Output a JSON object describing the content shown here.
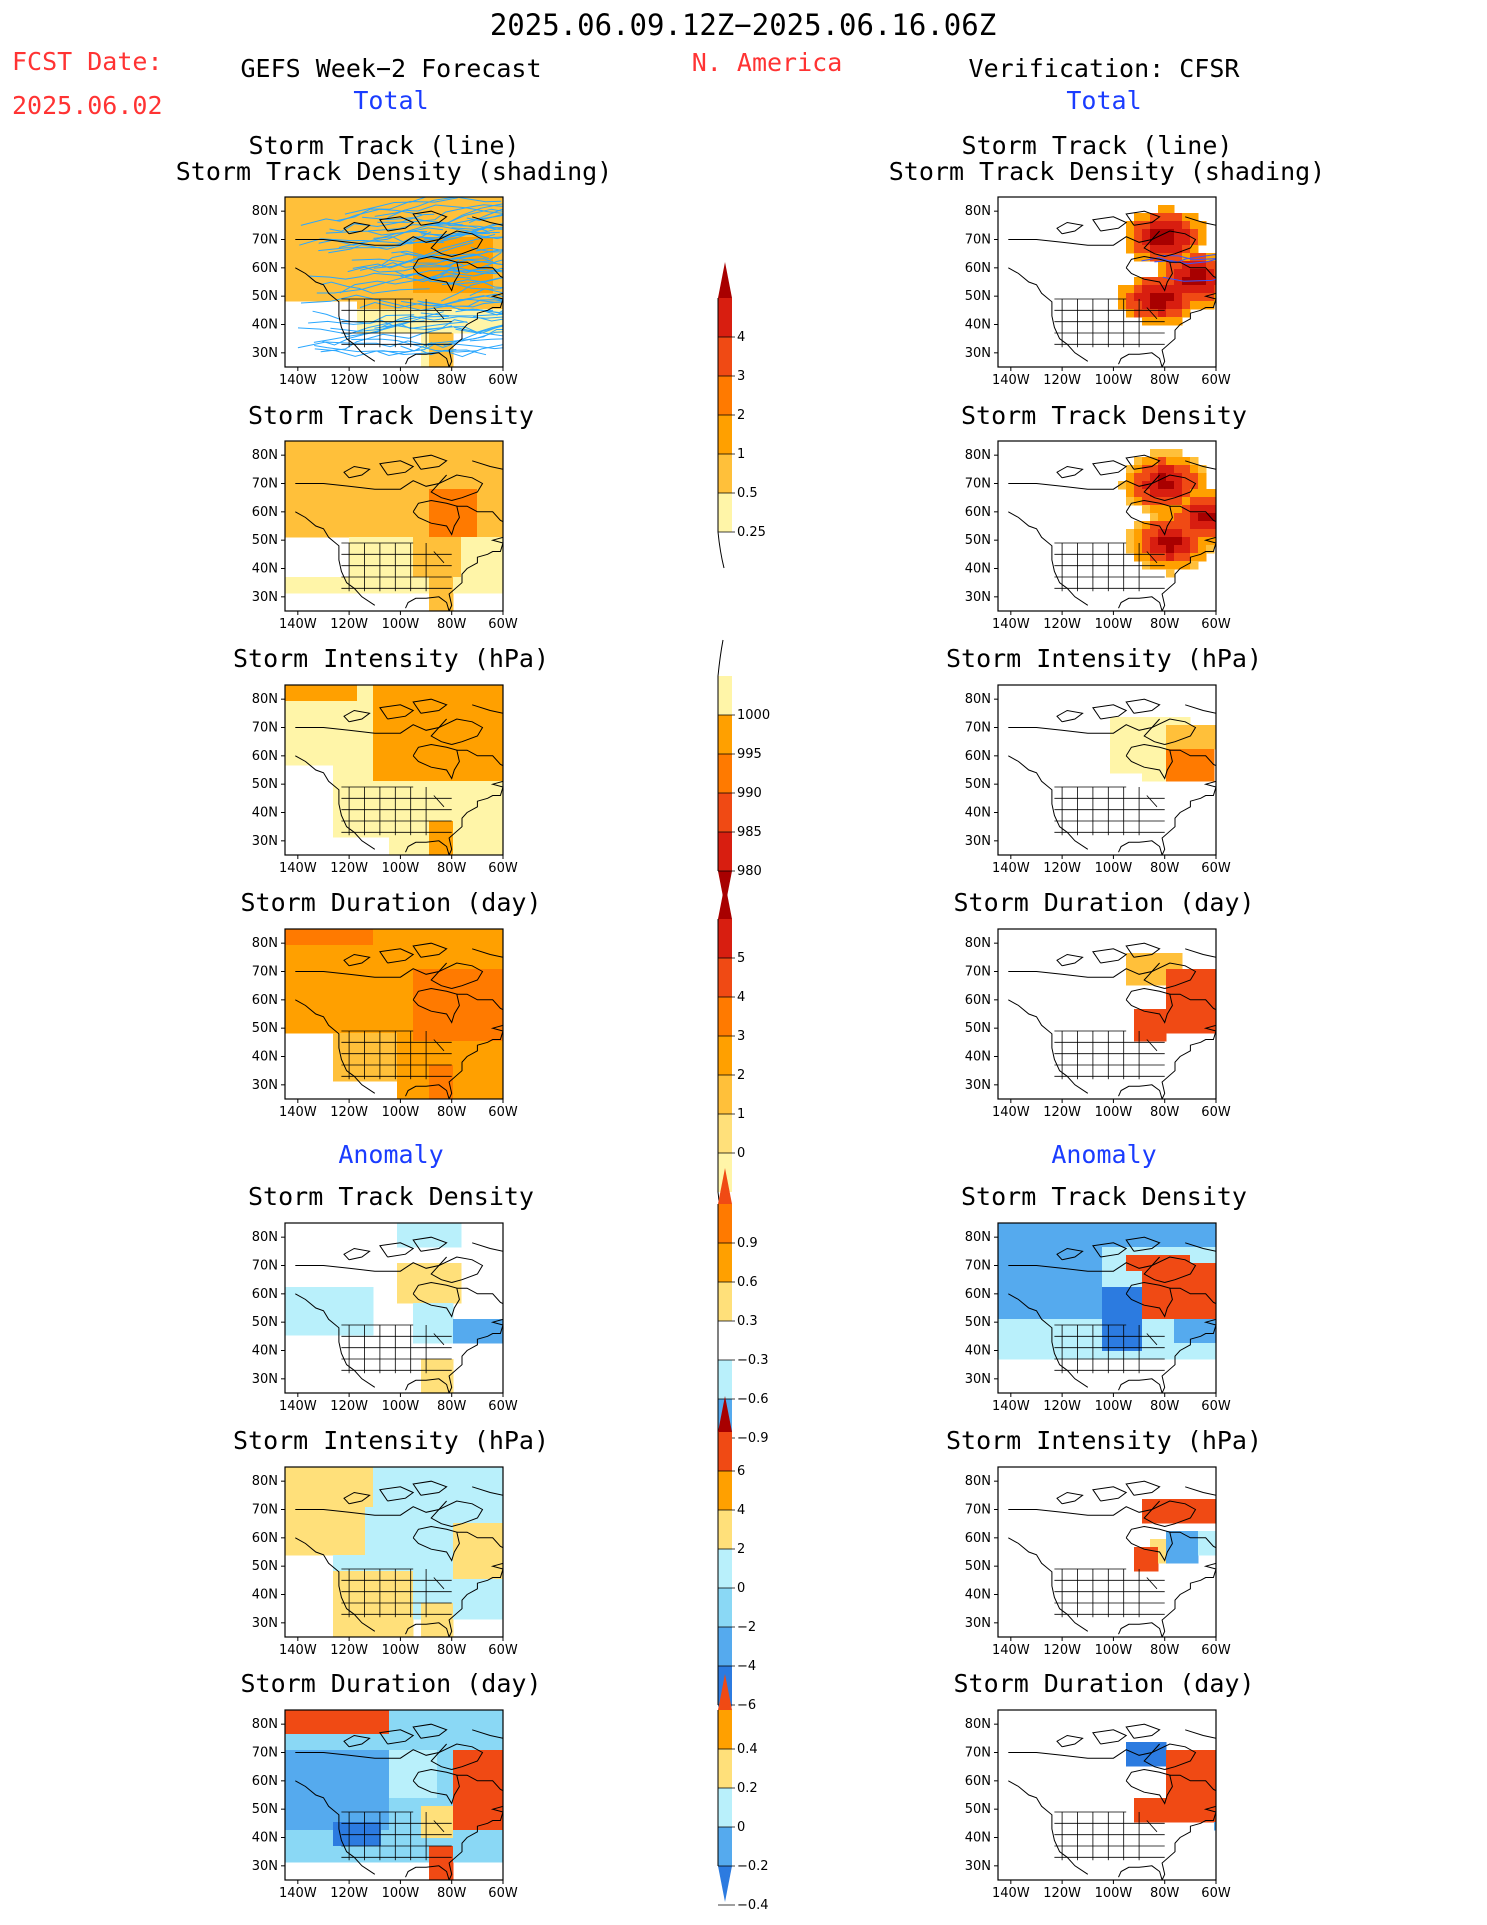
{
  "header": {
    "date_range": "2025.06.09.12Z−2025.06.16.06Z",
    "fcst_label": "FCST Date:",
    "fcst_date": "2025.06.02",
    "region": "N. America",
    "left_title": "GEFS Week−2 Forecast",
    "right_title": "Verification: CFSR",
    "total_left": "Total",
    "total_right": "Total",
    "anomaly_left": "Anomaly",
    "anomaly_right": "Anomaly"
  },
  "colors": {
    "y1": "#fff5a8",
    "y2": "#ffe07a",
    "o1": "#ffc03a",
    "o2": "#ffa000",
    "o3": "#ff7a00",
    "r1": "#f04a14",
    "r2": "#d81e10",
    "r3": "#a80000",
    "lb1": "#b9f0fb",
    "lb2": "#8ad8f5",
    "b1": "#55aaee",
    "b2": "#2c7be0",
    "b3": "#0f4fc8",
    "track": "#2aa7ff",
    "accent_red": "#ff3333",
    "accent_blue": "#1a3cff"
  },
  "axes": {
    "lat_ticks": [
      "80N",
      "70N",
      "60N",
      "50N",
      "40N",
      "30N"
    ],
    "lon_ticks": [
      "140W",
      "120W",
      "100W",
      "80W",
      "60W"
    ]
  },
  "colorbars": [
    {
      "id": "cb_density",
      "labels": [
        "4",
        "3",
        "2",
        "1",
        "0.5",
        "0.25"
      ],
      "colors": [
        "r2",
        "r1",
        "o3",
        "o2",
        "o1",
        "y1"
      ],
      "top_tri": "r3",
      "bottom_tail": true
    },
    {
      "id": "cb_intensity",
      "labels": [
        "1000",
        "995",
        "990",
        "985",
        "980"
      ],
      "colors": [
        "y1",
        "o2",
        "o3",
        "r1",
        "r2"
      ],
      "bottom_tri": "r3",
      "top_tail": true
    },
    {
      "id": "cb_duration",
      "labels": [
        "5",
        "4",
        "3",
        "2",
        "1",
        "0"
      ],
      "colors": [
        "r2",
        "r1",
        "o3",
        "o2",
        "o1",
        "y2",
        "y1"
      ],
      "top_tri": "r3",
      "bottom_tail": true
    },
    {
      "id": "cb_anom_density",
      "labels": [
        "0.9",
        "0.6",
        "0.3",
        "−0.3",
        "−0.6",
        "−0.9"
      ],
      "colors": [
        "o3",
        "o2",
        "y2",
        "white",
        "lb1",
        "b1"
      ],
      "top_tri": "r1",
      "bottom_tri": "b2"
    },
    {
      "id": "cb_anom_intensity",
      "labels": [
        "6",
        "4",
        "2",
        "0",
        "−2",
        "−4",
        "−6"
      ],
      "colors": [
        "r1",
        "o2",
        "y2",
        "lb1",
        "lb2",
        "b1",
        "b2"
      ],
      "top_tri": "r3",
      "bottom_tri": "b2"
    },
    {
      "id": "cb_anom_duration",
      "labels": [
        "0.4",
        "0.2",
        "0",
        "−0.2",
        "−0.4"
      ],
      "colors": [
        "o2",
        "y2",
        "lb1",
        "b1"
      ],
      "top_tri": "r1",
      "bottom_tri": "b2"
    }
  ],
  "chart_data": [
    {
      "type": "heatmap",
      "title": "Storm Track (line)",
      "subtitle": "Storm Track Density (shading)",
      "panel": "forecast-total-track",
      "tracks": true,
      "field": "orange broad, highest near Hudson Bay / Labrador"
    },
    {
      "type": "heatmap",
      "title": "Storm Track (line)",
      "subtitle": "Storm Track Density (shading)",
      "panel": "verification-total-track",
      "tracks": true,
      "field": "two red maxima: 70N 80W and 55N 65W"
    },
    {
      "type": "heatmap",
      "title": "Storm Track Density",
      "panel": "forecast-total-density"
    },
    {
      "type": "heatmap",
      "title": "Storm Track Density",
      "panel": "verification-total-density"
    },
    {
      "type": "heatmap",
      "title": "Storm Intensity (hPa)",
      "panel": "forecast-total-intensity"
    },
    {
      "type": "heatmap",
      "title": "Storm Intensity (hPa)",
      "panel": "verification-total-intensity"
    },
    {
      "type": "heatmap",
      "title": "Storm Duration (day)",
      "panel": "forecast-total-duration"
    },
    {
      "type": "heatmap",
      "title": "Storm Duration (day)",
      "panel": "verification-total-duration"
    },
    {
      "type": "heatmap",
      "title": "Storm Track Density",
      "panel": "forecast-anomaly-density"
    },
    {
      "type": "heatmap",
      "title": "Storm Track Density",
      "panel": "verification-anomaly-density"
    },
    {
      "type": "heatmap",
      "title": "Storm Intensity (hPa)",
      "panel": "forecast-anomaly-intensity"
    },
    {
      "type": "heatmap",
      "title": "Storm Intensity (hPa)",
      "panel": "verification-anomaly-intensity"
    },
    {
      "type": "heatmap",
      "title": "Storm Duration (day)",
      "panel": "forecast-anomaly-duration"
    },
    {
      "type": "heatmap",
      "title": "Storm Duration (day)",
      "panel": "verification-anomaly-duration"
    }
  ]
}
